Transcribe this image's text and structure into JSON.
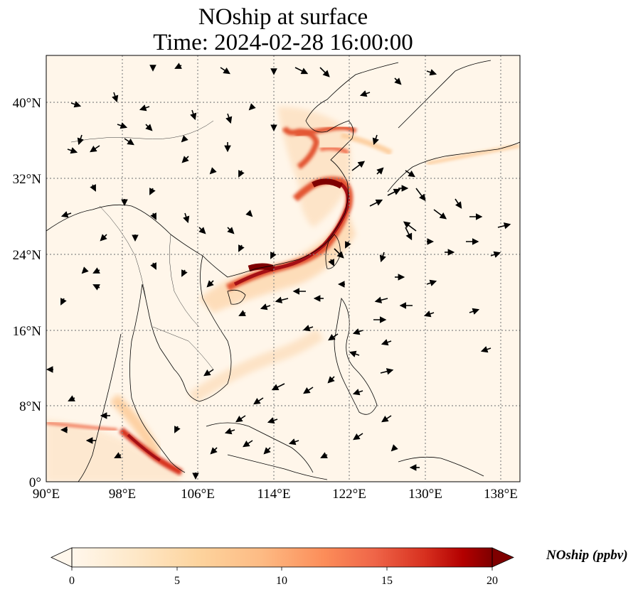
{
  "title": {
    "line1": "NOship at surface",
    "line2": "Time: 2024-02-28 16:00:00"
  },
  "axes": {
    "x_ticks": [
      "90°E",
      "98°E",
      "106°E",
      "114°E",
      "122°E",
      "130°E",
      "138°E"
    ],
    "y_ticks": [
      "40°N",
      "32°N",
      "24°N",
      "16°N",
      "8°N",
      "0°"
    ]
  },
  "map_extent": {
    "lon_min": 90,
    "lon_max": 140,
    "lat_min": 0,
    "lat_max": 45
  },
  "colorbar": {
    "label": "NOship (ppbv)",
    "ticks": [
      "0",
      "5",
      "10",
      "15",
      "20"
    ],
    "min": 0,
    "max": 20,
    "colormap": "OrRd",
    "extend": "both"
  },
  "colors": {
    "low": "#fff7ec",
    "mid": "#fdbb84",
    "high": "#d7301f",
    "max": "#7f0000"
  }
}
